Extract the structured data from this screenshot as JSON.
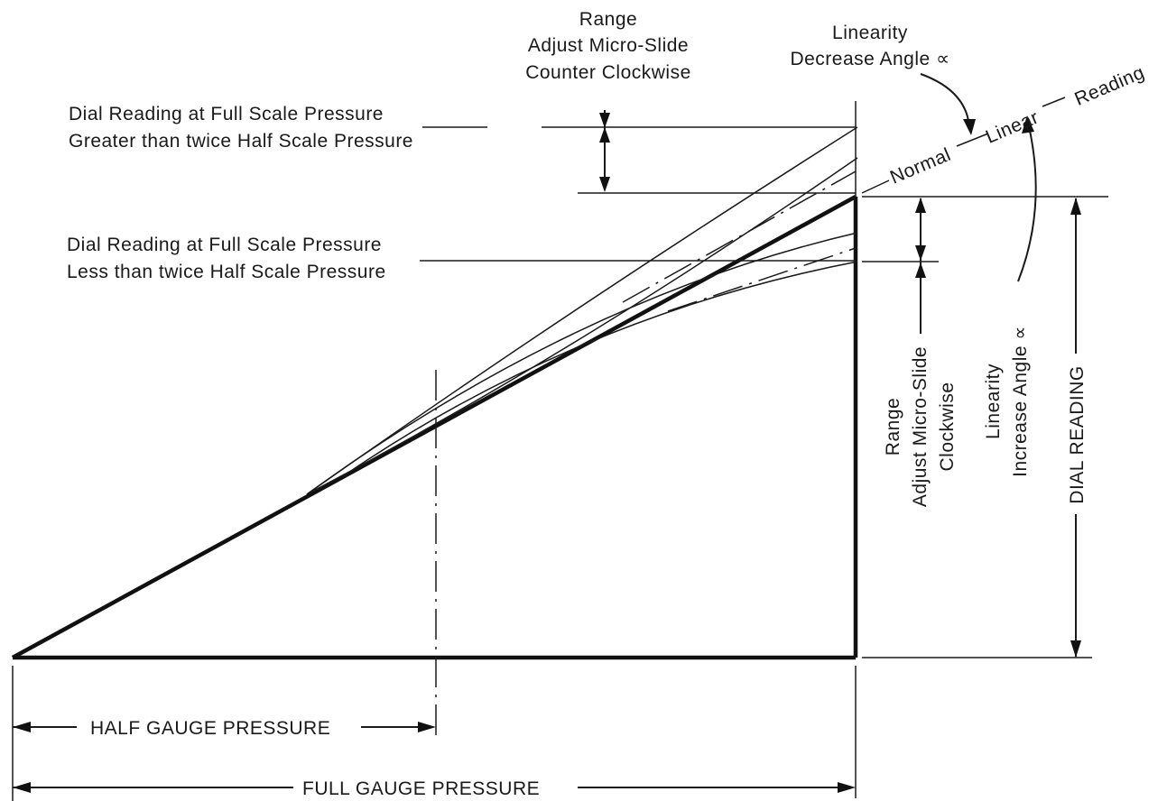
{
  "labels": {
    "range_top": [
      "Range",
      "Adjust Micro-Slide",
      "Counter Clockwise"
    ],
    "linearity_top": [
      "Linearity",
      "Decrease Angle ∝"
    ],
    "reading_greater": [
      "Dial Reading at Full Scale Pressure",
      "Greater than twice Half Scale Pressure"
    ],
    "reading_less": [
      "Dial Reading at Full Scale Pressure",
      "Less than twice Half Scale Pressure"
    ],
    "normal_linear_reading": [
      "Normal",
      "Linear",
      "Reading"
    ],
    "range_right": [
      "Range",
      "Adjust Micro-Slide",
      "Clockwise"
    ],
    "linearity_right": [
      "Linearity",
      "Increase Angle ∝"
    ],
    "dial_reading": "DIAL READING",
    "half_gauge": "HALF GAUGE PRESSURE",
    "full_gauge": "FULL GAUGE PRESSURE"
  }
}
